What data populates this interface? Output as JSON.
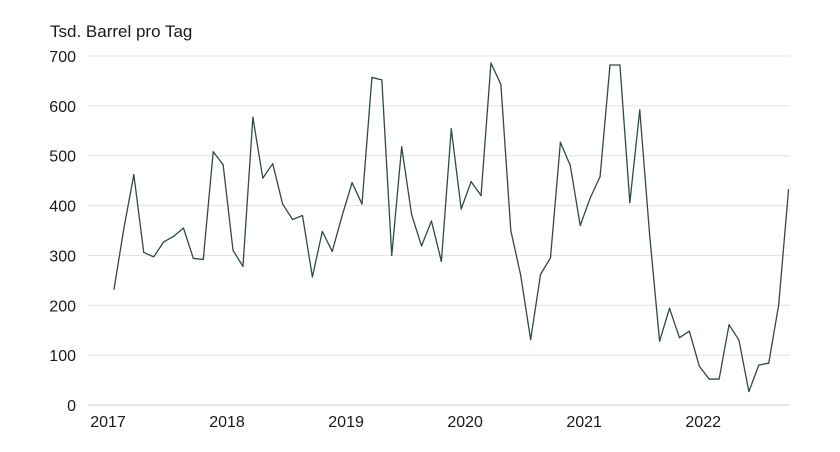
{
  "chart_data": {
    "type": "line",
    "unit_label": "Tsd. Barrel pro Tag",
    "xlabel": "",
    "ylabel": "",
    "ylim": [
      0,
      700
    ],
    "y_ticks": [
      0,
      100,
      200,
      300,
      400,
      500,
      600,
      700
    ],
    "x_start": "2017-01",
    "x_ticks": [
      "2017",
      "2018",
      "2019",
      "2020",
      "2021",
      "2022"
    ],
    "grid": "horizontal",
    "line_color": "#2f4a48",
    "series": [
      {
        "values": [
          232,
          355,
          462,
          306,
          297,
          327,
          338,
          355,
          294,
          292,
          508,
          482,
          310,
          278,
          577,
          455,
          484,
          403,
          372,
          380,
          257,
          348,
          308,
          380,
          446,
          403,
          657,
          652,
          300,
          518,
          382,
          319,
          369,
          288,
          554,
          393,
          448,
          420,
          686,
          643,
          350,
          260,
          131,
          262,
          295,
          527,
          480,
          360,
          415,
          458,
          682,
          682,
          406,
          592,
          340,
          128,
          194,
          135,
          148,
          78,
          52,
          52,
          161,
          130,
          27,
          80,
          84,
          200,
          432
        ]
      }
    ]
  }
}
